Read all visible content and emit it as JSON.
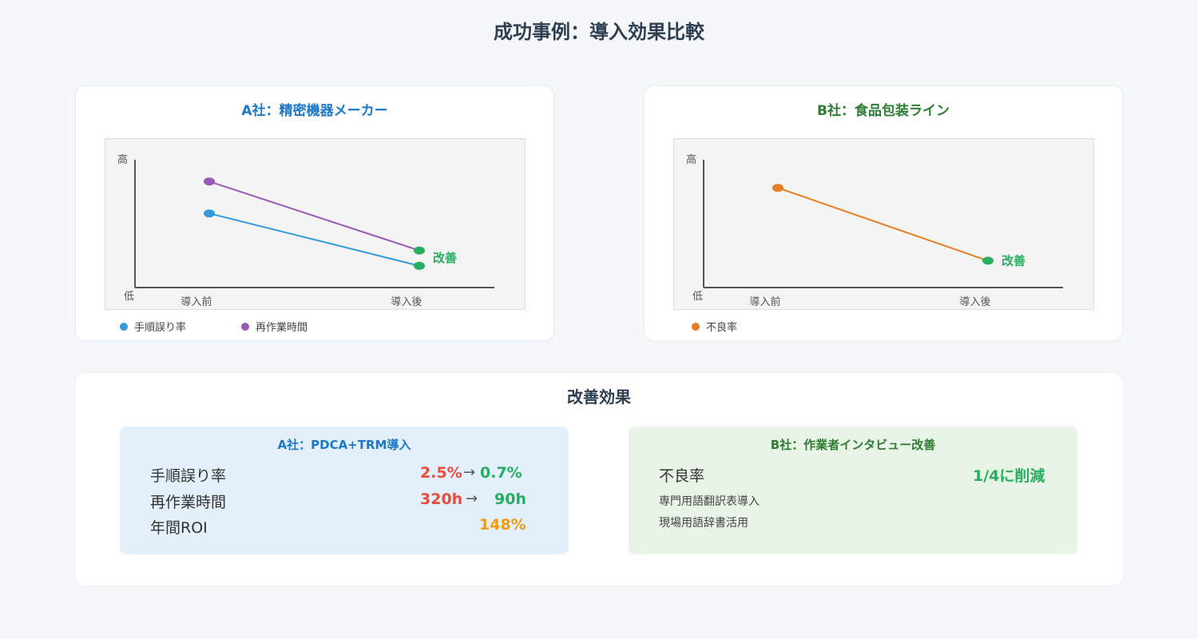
{
  "page_title": "成功事例：導入効果比較",
  "colors": {
    "blue": "#3498db",
    "purple": "#9b59b6",
    "orange": "#e67e22",
    "red_start": "#e74c3c",
    "green": "#27ae60"
  },
  "chart_data": [
    {
      "type": "line",
      "title": "A社：精密機器メーカー",
      "x": [
        "導入前",
        "導入後"
      ],
      "ylabel_high": "高",
      "ylabel_low": "低",
      "ylim": [
        0,
        1
      ],
      "series": [
        {
          "name": "手順誤り率",
          "values": [
            0.58,
            0.17
          ],
          "color": "#3498db"
        },
        {
          "name": "再作業時間",
          "values": [
            0.83,
            0.29
          ],
          "color": "#9b59b6"
        }
      ],
      "annotation": "改善",
      "grid": false,
      "legend_position": "bottom-left"
    },
    {
      "type": "line",
      "title": "B社：食品包装ライン",
      "x": [
        "導入前",
        "導入後"
      ],
      "ylabel_high": "高",
      "ylabel_low": "低",
      "ylim": [
        0,
        1
      ],
      "series": [
        {
          "name": "不良率",
          "values": [
            0.78,
            0.21
          ],
          "color": "#e67e22"
        }
      ],
      "annotation": "改善",
      "grid": false,
      "legend_position": "bottom-left"
    }
  ],
  "effects": {
    "title": "改善効果",
    "company_a": {
      "title": "A社：PDCA+TRM導入",
      "rows": [
        {
          "label": "手順誤り率",
          "before": "2.5%",
          "arrow": "→",
          "after": "0.7%"
        },
        {
          "label": "再作業時間",
          "before": "320h",
          "arrow": "→",
          "after": "90h"
        }
      ],
      "roi_label": "年間ROI",
      "roi_value": "148%"
    },
    "company_b": {
      "title": "B社：作業者インタビュー改善",
      "row_label": "不良率",
      "row_value": "1/4に削減",
      "notes": [
        "専門用語翻訳表導入",
        "現場用語辞書活用"
      ]
    }
  }
}
